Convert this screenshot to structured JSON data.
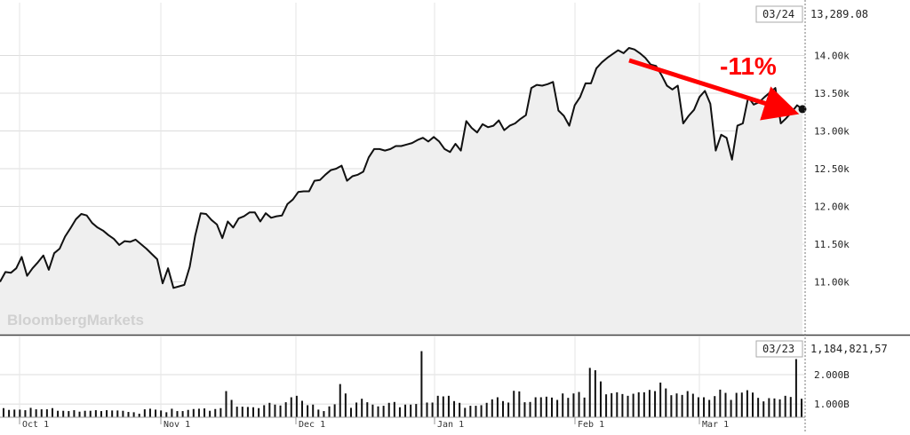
{
  "watermark": "BloombergMarkets",
  "annotation": {
    "text": "-11%",
    "color": "#ff0000"
  },
  "price_readout": {
    "date": "03/24",
    "value": "13,289.08"
  },
  "volume_readout": {
    "date": "03/23",
    "value": "1,184,821,57"
  },
  "chart_data": [
    {
      "type": "line",
      "name": "price",
      "x_tick_labels": [
        "Oct 1",
        "Nov 1",
        "Dec 1",
        "Jan 1",
        "Feb 1",
        "Mar 1"
      ],
      "y_tick_labels": [
        "11.00k",
        "11.50k",
        "12.00k",
        "12.50k",
        "13.00k",
        "13.50k",
        "14.00k"
      ],
      "y_ticks": [
        11000,
        11500,
        12000,
        12500,
        13000,
        13500,
        14000
      ],
      "ylim": [
        10300,
        14700
      ],
      "last_value": 13289.08,
      "grid": true,
      "values": [
        11000,
        11130,
        11120,
        11180,
        11330,
        11080,
        11180,
        11260,
        11350,
        11160,
        11380,
        11440,
        11600,
        11710,
        11830,
        11900,
        11880,
        11780,
        11720,
        11680,
        11620,
        11570,
        11490,
        11540,
        11530,
        11560,
        11500,
        11440,
        11370,
        11300,
        10980,
        11180,
        10920,
        10940,
        10960,
        11200,
        11610,
        11910,
        11900,
        11820,
        11760,
        11580,
        11800,
        11720,
        11840,
        11870,
        11920,
        11920,
        11800,
        11910,
        11850,
        11870,
        11880,
        12030,
        12090,
        12190,
        12200,
        12200,
        12340,
        12350,
        12420,
        12480,
        12500,
        12540,
        12340,
        12400,
        12420,
        12460,
        12650,
        12760,
        12760,
        12740,
        12760,
        12800,
        12800,
        12820,
        12840,
        12880,
        12910,
        12860,
        12920,
        12860,
        12760,
        12720,
        12830,
        12740,
        13130,
        13040,
        12980,
        13090,
        13050,
        13070,
        13140,
        13010,
        13070,
        13100,
        13160,
        13210,
        13570,
        13610,
        13600,
        13620,
        13650,
        13270,
        13200,
        13070,
        13340,
        13450,
        13630,
        13630,
        13830,
        13910,
        13970,
        14020,
        14070,
        14030,
        14100,
        14080,
        14030,
        13970,
        13880,
        13860,
        13740,
        13600,
        13550,
        13600,
        13100,
        13200,
        13280,
        13450,
        13530,
        13360,
        12740,
        12950,
        12910,
        12620,
        13070,
        13100,
        13450,
        13350,
        13380,
        13450,
        13510,
        13570,
        13100,
        13170,
        13250,
        13340,
        13289.08
      ]
    },
    {
      "type": "bar",
      "name": "volume",
      "y_tick_labels": [
        "1.000B",
        "2.000B"
      ],
      "y_ticks": [
        1.0,
        2.0
      ],
      "ylim": [
        0.55,
        3.3
      ],
      "x_tick_labels": [
        "Oct 1",
        "Nov 1",
        "Dec 1",
        "Jan 1",
        "Feb 1",
        "Mar 1"
      ],
      "last_value": 1.18482157,
      "values": [
        0.86,
        0.8,
        0.81,
        0.81,
        0.79,
        0.87,
        0.82,
        0.82,
        0.82,
        0.86,
        0.77,
        0.77,
        0.76,
        0.79,
        0.74,
        0.77,
        0.77,
        0.79,
        0.76,
        0.79,
        0.78,
        0.78,
        0.77,
        0.73,
        0.72,
        0.67,
        0.82,
        0.84,
        0.81,
        0.78,
        0.72,
        0.84,
        0.76,
        0.76,
        0.8,
        0.83,
        0.84,
        0.85,
        0.77,
        0.83,
        0.86,
        1.44,
        1.14,
        0.91,
        0.91,
        0.9,
        0.89,
        0.86,
        0.96,
        1.04,
        0.98,
        0.95,
        1.06,
        1.23,
        1.28,
        1.11,
        0.96,
        0.98,
        0.81,
        0.76,
        0.92,
        0.99,
        1.68,
        1.36,
        0.87,
        1.05,
        1.18,
        1.06,
        0.98,
        0.92,
        0.94,
        1.04,
        1.07,
        0.89,
        0.98,
        0.98,
        1.0,
        2.8,
        1.05,
        1.05,
        1.28,
        1.26,
        1.28,
        1.1,
        1.04,
        0.87,
        0.94,
        0.94,
        0.96,
        1.04,
        1.16,
        1.23,
        1.1,
        1.05,
        1.45,
        1.43,
        1.06,
        1.07,
        1.23,
        1.23,
        1.25,
        1.22,
        1.14,
        1.36,
        1.21,
        1.36,
        1.41,
        1.22,
        2.23,
        2.15,
        1.77,
        1.33,
        1.37,
        1.4,
        1.34,
        1.28,
        1.35,
        1.4,
        1.4,
        1.48,
        1.44,
        1.73,
        1.53,
        1.3,
        1.36,
        1.31,
        1.44,
        1.35,
        1.23,
        1.23,
        1.14,
        1.27,
        1.49,
        1.38,
        1.14,
        1.38,
        1.39,
        1.47,
        1.39,
        1.21,
        1.09,
        1.2,
        1.19,
        1.16,
        1.28,
        1.24,
        2.53,
        1.18
      ]
    }
  ]
}
